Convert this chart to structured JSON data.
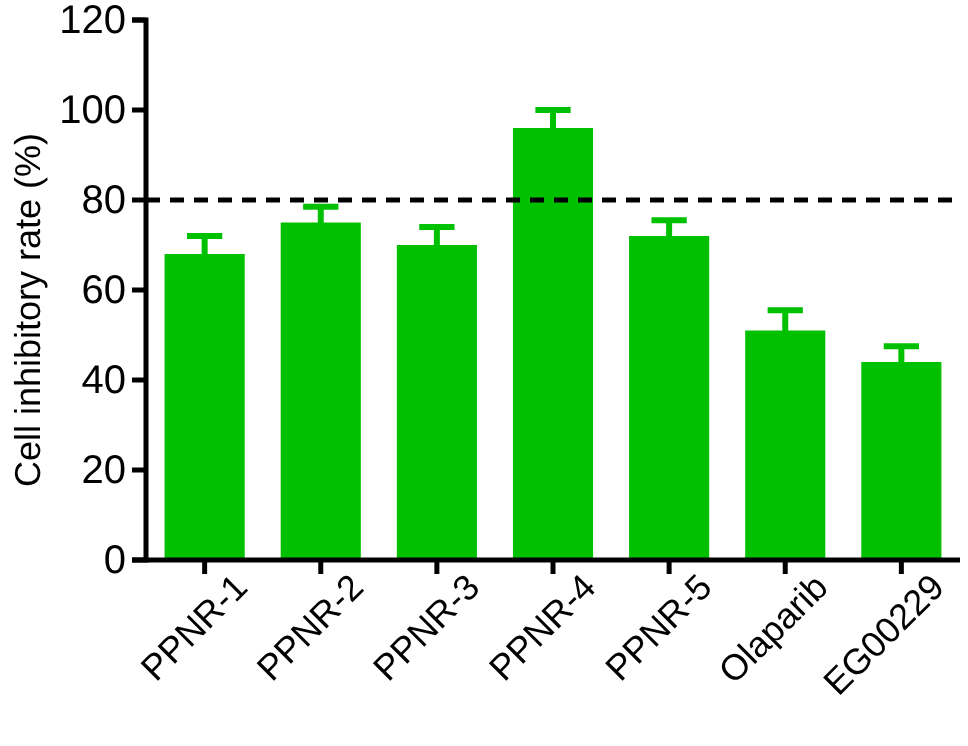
{
  "chart_data": {
    "type": "bar",
    "ylabel": "Cell inhibitory rate (%)",
    "categories": [
      "PPNR-1",
      "PPNR-2",
      "PPNR-3",
      "PPNR-4",
      "PPNR-5",
      "Olaparib",
      "EG00229"
    ],
    "values": [
      68,
      75,
      70,
      96,
      72,
      51,
      44
    ],
    "errors": [
      4,
      3.5,
      4,
      4,
      3.5,
      4.5,
      3.5
    ],
    "color": "#00c000",
    "ylim": [
      0,
      120
    ],
    "yticks": [
      0,
      20,
      40,
      60,
      80,
      100,
      120
    ],
    "ref_lines": [
      {
        "axis": "y",
        "value": 80,
        "color": "#000000",
        "line_style": "dashed"
      }
    ],
    "grid": false
  }
}
